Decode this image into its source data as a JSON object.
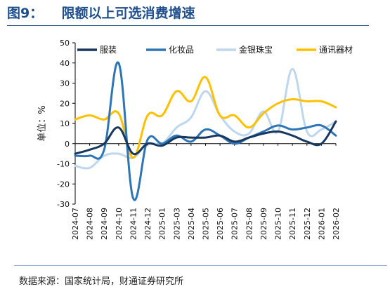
{
  "title": "图9：    限额以上可选消费增速",
  "source": "数据来源：国家统计局，财通证券研究所",
  "chart_data": {
    "type": "line",
    "ylabel": "单位：%",
    "ylim": [
      -30,
      50
    ],
    "yticks": [
      -30,
      -20,
      -10,
      0,
      10,
      20,
      30,
      40,
      50
    ],
    "legend_position": "top",
    "categories": [
      "2024-07",
      "2024-08",
      "2024-09",
      "2024-10",
      "2024-11",
      "2024-12",
      "2025-01",
      "2025-03",
      "2025-04",
      "2025-05",
      "2025-06",
      "2025-07",
      "2025-08",
      "2025-09",
      "2025-10",
      "2025-11",
      "2025-12",
      "2026-01",
      "2026-02"
    ],
    "series": [
      {
        "name": "服装",
        "color": "#17375e",
        "values": [
          -5,
          -3,
          0,
          8,
          -5,
          0,
          -1,
          3,
          3,
          3,
          4,
          1,
          3,
          5,
          6,
          4,
          1,
          0,
          11
        ]
      },
      {
        "name": "化妆品",
        "color": "#2e75b6",
        "values": [
          -6,
          -6,
          -3,
          40,
          -27,
          2,
          0,
          4,
          1,
          7,
          4,
          0,
          3,
          6,
          9,
          7,
          8,
          9,
          4
        ]
      },
      {
        "name": "金银珠宝",
        "color": "#bdd7ee",
        "values": [
          -11,
          -12,
          -6,
          -5,
          -7,
          0,
          0,
          8,
          13,
          26,
          14,
          6,
          5,
          16,
          6,
          37,
          6,
          7,
          11
        ]
      },
      {
        "name": "通讯器材",
        "color": "#ffc000",
        "values": [
          12,
          14,
          12,
          15,
          -7,
          14,
          14,
          26,
          21,
          33,
          14,
          14,
          8,
          15,
          20,
          22,
          21,
          21,
          18
        ]
      }
    ]
  }
}
